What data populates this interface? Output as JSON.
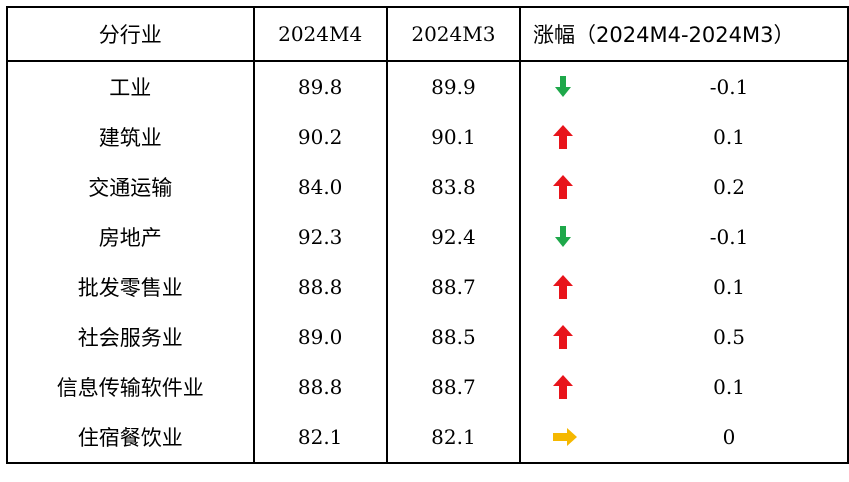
{
  "table": {
    "headers": {
      "industry": "分行业",
      "cur": "2024M4",
      "prev": "2024M3",
      "change": "涨幅（2024M4-2024M3）"
    },
    "rows": [
      {
        "industry": "工业",
        "cur": "89.8",
        "prev": "89.9",
        "change": "-0.1",
        "trend": "down"
      },
      {
        "industry": "建筑业",
        "cur": "90.2",
        "prev": "90.1",
        "change": "0.1",
        "trend": "up"
      },
      {
        "industry": "交通运输",
        "cur": "84.0",
        "prev": "83.8",
        "change": "0.2",
        "trend": "up"
      },
      {
        "industry": "房地产",
        "cur": "92.3",
        "prev": "92.4",
        "change": "-0.1",
        "trend": "down"
      },
      {
        "industry": "批发零售业",
        "cur": "88.8",
        "prev": "88.7",
        "change": "0.1",
        "trend": "up"
      },
      {
        "industry": "社会服务业",
        "cur": "89.0",
        "prev": "88.5",
        "change": "0.5",
        "trend": "up"
      },
      {
        "industry": "信息传输软件业",
        "cur": "88.8",
        "prev": "88.7",
        "change": "0.1",
        "trend": "up"
      },
      {
        "industry": "住宿餐饮业",
        "cur": "82.1",
        "prev": "82.1",
        "change": "0",
        "trend": "flat"
      }
    ],
    "colors": {
      "up": "#e8141b",
      "down": "#1ea84a",
      "flat": "#f5b800",
      "border": "#000000"
    }
  }
}
